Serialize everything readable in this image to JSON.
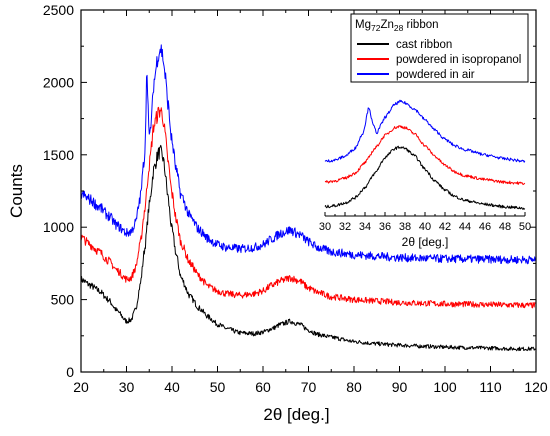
{
  "chart_data": [
    {
      "type": "line",
      "xlabel": "2θ [deg.]",
      "ylabel": "Counts",
      "xlim": [
        20,
        120
      ],
      "ylim": [
        0,
        2500
      ],
      "xticks": [
        20,
        30,
        40,
        50,
        60,
        70,
        80,
        90,
        100,
        110,
        120
      ],
      "yticks": [
        0,
        500,
        1000,
        1500,
        2000,
        2500
      ],
      "grid": false,
      "series": [
        {
          "name": "cast ribbon",
          "color": "#000000",
          "x": [
            20,
            22,
            24,
            26,
            28,
            30,
            31,
            32,
            33,
            34,
            35,
            36,
            37,
            37.5,
            38,
            38.5,
            39,
            40,
            41,
            42,
            44,
            46,
            48,
            50,
            52,
            55,
            58,
            60,
            62,
            64,
            66,
            68,
            70,
            72,
            75,
            80,
            85,
            90,
            95,
            100,
            105,
            110,
            115,
            120
          ],
          "values": [
            640,
            600,
            560,
            500,
            420,
            350,
            360,
            430,
            600,
            850,
            1150,
            1400,
            1510,
            1520,
            1480,
            1380,
            1230,
            980,
            800,
            650,
            520,
            440,
            380,
            330,
            300,
            270,
            265,
            275,
            300,
            330,
            350,
            330,
            290,
            260,
            240,
            210,
            195,
            185,
            178,
            172,
            168,
            165,
            160,
            160
          ]
        },
        {
          "name": "powdered in isopropanol",
          "color": "#ff0000",
          "x": [
            20,
            22,
            24,
            26,
            28,
            30,
            31,
            32,
            33,
            34,
            35,
            36,
            37,
            37.5,
            38,
            38.5,
            39,
            40,
            41,
            42,
            44,
            46,
            48,
            50,
            52,
            55,
            58,
            60,
            62,
            64,
            66,
            68,
            70,
            72,
            75,
            80,
            85,
            90,
            95,
            100,
            105,
            110,
            115,
            120
          ],
          "values": [
            930,
            880,
            830,
            770,
            700,
            640,
            650,
            720,
            880,
            1120,
            1430,
            1700,
            1790,
            1810,
            1760,
            1640,
            1480,
            1230,
            1040,
            890,
            750,
            660,
            590,
            560,
            540,
            530,
            540,
            560,
            600,
            630,
            650,
            630,
            580,
            550,
            520,
            500,
            490,
            480,
            475,
            470,
            468,
            465,
            462,
            460
          ]
        },
        {
          "name": "powdered in air",
          "color": "#0000ff",
          "x": [
            20,
            22,
            24,
            26,
            28,
            30,
            31,
            32,
            33,
            34,
            34.5,
            35,
            35.5,
            36,
            37,
            37.5,
            38,
            38.5,
            39,
            40,
            41,
            42,
            44,
            46,
            48,
            50,
            52,
            55,
            58,
            60,
            62,
            64,
            66,
            68,
            70,
            72,
            75,
            80,
            85,
            90,
            95,
            100,
            105,
            110,
            115,
            120
          ],
          "values": [
            1230,
            1190,
            1140,
            1080,
            1010,
            960,
            970,
            1030,
            1200,
            1500,
            2090,
            1600,
            1750,
            2000,
            2200,
            2240,
            2180,
            2050,
            1880,
            1590,
            1380,
            1220,
            1070,
            980,
            920,
            880,
            860,
            850,
            860,
            880,
            920,
            960,
            980,
            950,
            900,
            860,
            830,
            810,
            800,
            790,
            785,
            782,
            780,
            778,
            776,
            775
          ]
        }
      ],
      "legend": {
        "title": "Mg72Zn28 ribbon",
        "title_base": "Mg",
        "title_sub1": "72",
        "title_mid": "Zn",
        "title_sub2": "28",
        "title_tail": " ribbon",
        "placement": "top-right"
      }
    },
    {
      "type": "line",
      "role": "inset",
      "xlabel": "2θ [deg.]",
      "ylabel": "",
      "xlim": [
        30,
        50
      ],
      "xticks": [
        30,
        32,
        34,
        36,
        38,
        40,
        42,
        44,
        46,
        48,
        50
      ],
      "yticks": [],
      "grid": false,
      "series": [
        {
          "name": "cast ribbon",
          "color": "#000000",
          "x": [
            30,
            31,
            32,
            33,
            34,
            35,
            36,
            37,
            37.5,
            38,
            39,
            40,
            41,
            42,
            43,
            44,
            46,
            48,
            50
          ],
          "values": [
            0.07,
            0.08,
            0.1,
            0.14,
            0.22,
            0.33,
            0.45,
            0.52,
            0.53,
            0.52,
            0.46,
            0.36,
            0.27,
            0.2,
            0.15,
            0.12,
            0.09,
            0.07,
            0.06
          ]
        },
        {
          "name": "powdered in isopropanol",
          "color": "#ff0000",
          "x": [
            30,
            31,
            32,
            33,
            34,
            35,
            36,
            37,
            37.5,
            38,
            39,
            40,
            41,
            42,
            43,
            44,
            46,
            48,
            50
          ],
          "values": [
            0.26,
            0.27,
            0.29,
            0.33,
            0.41,
            0.52,
            0.62,
            0.68,
            0.69,
            0.68,
            0.63,
            0.54,
            0.46,
            0.39,
            0.34,
            0.31,
            0.28,
            0.26,
            0.25
          ]
        },
        {
          "name": "powdered in air",
          "color": "#0000ff",
          "x": [
            30,
            31,
            32,
            33,
            33.8,
            34.4,
            34.8,
            35.2,
            35.6,
            36,
            37,
            37.5,
            38,
            39,
            40,
            41,
            42,
            43,
            44,
            46,
            48,
            50
          ],
          "values": [
            0.42,
            0.43,
            0.46,
            0.52,
            0.64,
            0.84,
            0.7,
            0.64,
            0.7,
            0.76,
            0.86,
            0.88,
            0.87,
            0.82,
            0.74,
            0.66,
            0.59,
            0.54,
            0.51,
            0.47,
            0.44,
            0.42
          ]
        }
      ]
    }
  ]
}
